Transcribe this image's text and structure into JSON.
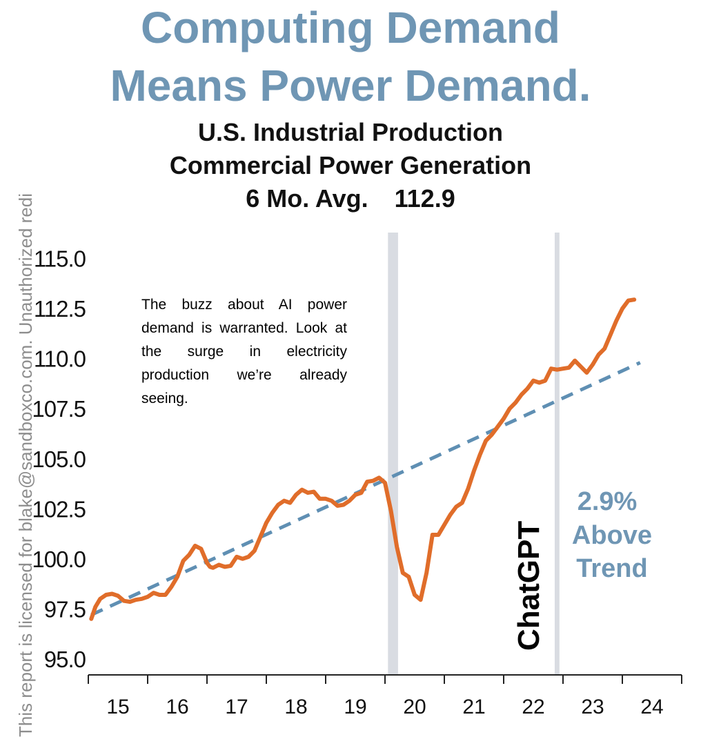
{
  "headline": {
    "line1": "Computing Demand",
    "line2": "Means Power Demand."
  },
  "subtitle": {
    "line1": "U.S. Industrial Production",
    "line2": "Commercial Power Generation",
    "line3_label": "6 Mo. Avg.",
    "line3_value": "112.9"
  },
  "watermark": "This report is licensed for blake@sandboxco.com. Unauthorized redi",
  "annotation": "The buzz about AI power demand is warranted. Look at the surge in electricity production we’re already seeing.",
  "callout": {
    "line1": "2.9%",
    "line2": "Above",
    "line3": "Trend"
  },
  "event_label": "ChatGPT",
  "colors": {
    "headline": "#6f96b4",
    "series": "#e06d2a",
    "trend": "#5f8fb3",
    "shading": "#d9dce2"
  },
  "chart_data": {
    "type": "line",
    "ylim": [
      94.2,
      116.3
    ],
    "xlim": [
      2015.0,
      2025.0
    ],
    "y_ticks": [
      "115.0",
      "112.5",
      "110.0",
      "107.5",
      "105.0",
      "102.5",
      "100.0",
      "97.5",
      "95.0"
    ],
    "y_tick_values": [
      115.0,
      112.5,
      110.0,
      107.5,
      105.0,
      102.5,
      100.0,
      97.5,
      95.0
    ],
    "x_ticks": [
      "15",
      "16",
      "17",
      "18",
      "19",
      "20",
      "21",
      "22",
      "23",
      "24"
    ],
    "x_tick_values": [
      2015.5,
      2016.5,
      2017.5,
      2018.5,
      2019.5,
      2020.5,
      2021.5,
      2022.5,
      2023.5,
      2024.5
    ],
    "shaded_periods": [
      {
        "start": 2020.05,
        "end": 2020.22
      },
      {
        "start": 2022.86,
        "end": 2022.94
      }
    ],
    "series": [
      {
        "name": "",
        "style": "solid",
        "x": [
          2015.05,
          2015.12,
          2015.2,
          2015.3,
          2015.4,
          2015.5,
          2015.6,
          2015.7,
          2015.8,
          2015.9,
          2016.0,
          2016.1,
          2016.2,
          2016.3,
          2016.4,
          2016.5,
          2016.6,
          2016.7,
          2016.8,
          2016.9,
          2017.0,
          2017.05,
          2017.1,
          2017.2,
          2017.3,
          2017.4,
          2017.5,
          2017.6,
          2017.7,
          2017.8,
          2017.9,
          2018.0,
          2018.1,
          2018.2,
          2018.3,
          2018.4,
          2018.5,
          2018.6,
          2018.7,
          2018.8,
          2018.9,
          2019.0,
          2019.1,
          2019.2,
          2019.3,
          2019.4,
          2019.5,
          2019.6,
          2019.7,
          2019.8,
          2019.9,
          2020.0,
          2020.1,
          2020.2,
          2020.3,
          2020.4,
          2020.5,
          2020.6,
          2020.7,
          2020.8,
          2020.9,
          2021.0,
          2021.1,
          2021.2,
          2021.3,
          2021.4,
          2021.5,
          2021.6,
          2021.7,
          2021.8,
          2021.9,
          2022.0,
          2022.1,
          2022.2,
          2022.3,
          2022.4,
          2022.5,
          2022.6,
          2022.7,
          2022.8,
          2022.9,
          2023.0,
          2023.1,
          2023.2,
          2023.3,
          2023.4,
          2023.5,
          2023.6,
          2023.7,
          2023.8,
          2023.9,
          2024.0,
          2024.1,
          2024.2
        ],
        "y": [
          97.0,
          97.6,
          98.0,
          98.2,
          98.25,
          98.15,
          97.9,
          97.85,
          97.95,
          98.0,
          98.1,
          98.3,
          98.2,
          98.2,
          98.6,
          99.1,
          99.9,
          100.2,
          100.65,
          100.5,
          99.8,
          99.6,
          99.55,
          99.7,
          99.6,
          99.65,
          100.1,
          100.0,
          100.1,
          100.4,
          101.1,
          101.8,
          102.3,
          102.7,
          102.9,
          102.8,
          103.2,
          103.45,
          103.3,
          103.35,
          103.0,
          103.0,
          102.9,
          102.65,
          102.7,
          102.9,
          103.2,
          103.3,
          103.85,
          103.9,
          104.05,
          103.8,
          102.4,
          100.6,
          99.3,
          99.1,
          98.2,
          97.95,
          99.3,
          101.2,
          101.2,
          101.7,
          102.2,
          102.6,
          102.8,
          103.5,
          104.4,
          105.2,
          105.9,
          106.2,
          106.6,
          107.0,
          107.5,
          107.8,
          108.2,
          108.5,
          108.9,
          108.8,
          108.9,
          109.5,
          109.45,
          109.5,
          109.55,
          109.9,
          109.6,
          109.3,
          109.7,
          110.2,
          110.5,
          111.2,
          111.9,
          112.5,
          112.9,
          112.95
        ]
      },
      {
        "name": "",
        "style": "dashed",
        "x": [
          2015.05,
          2024.3
        ],
        "y": [
          97.2,
          109.8
        ]
      }
    ],
    "annotations": [
      "ChatGPT",
      "2.9%",
      "Above",
      "Trend"
    ]
  }
}
